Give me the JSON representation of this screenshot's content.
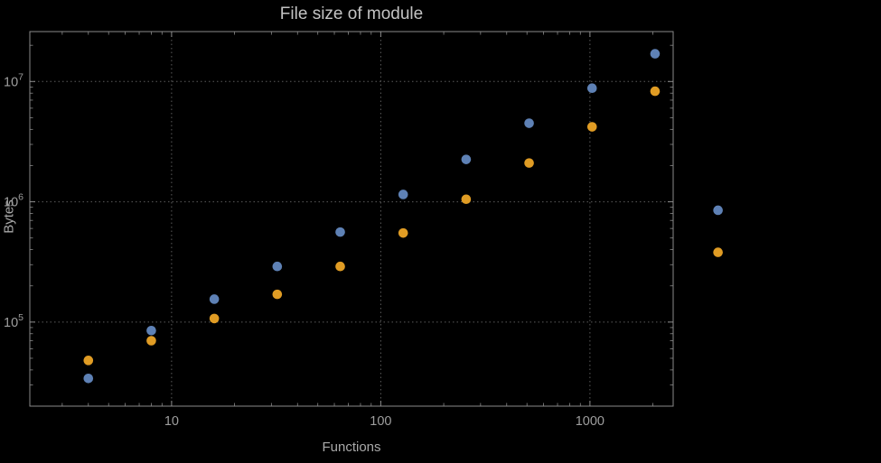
{
  "title": "File size of module",
  "chart_data": {
    "type": "scatter",
    "title": "File size of module",
    "xlabel": "Functions",
    "ylabel": "Bytes",
    "x_scale": "log",
    "y_scale": "log",
    "grid": "dotted-at-decades",
    "legend": "none",
    "x_range": [
      2.1,
      2500
    ],
    "y_range": [
      20000,
      26000000
    ],
    "x_ticks": [
      10,
      100,
      1000
    ],
    "x_tick_labels": [
      "10",
      "100",
      "1000"
    ],
    "y_ticks": [
      100000,
      1000000,
      10000000
    ],
    "y_tick_exponents": [
      5,
      6,
      7
    ],
    "x": [
      4,
      8,
      16,
      32,
      64,
      128,
      256,
      512,
      1024,
      2048,
      4096
    ],
    "series": [
      {
        "name": "blue",
        "color": "#5e81b5",
        "values": [
          34000,
          85000,
          155000,
          290000,
          560000,
          1150000,
          2250000,
          4500000,
          8800000,
          17000000,
          850000
        ]
      },
      {
        "name": "orange",
        "color": "#e09c24",
        "values": [
          48000,
          70000,
          107000,
          170000,
          290000,
          550000,
          1050000,
          2100000,
          4200000,
          8300000,
          380000
        ]
      }
    ]
  },
  "colors": {
    "background": "#000000",
    "frame": "#8a8a8a",
    "grid": "#5c5c5c",
    "title_text": "#c3c3c3",
    "axis_label_text": "#a9a9a9",
    "tick_label_text": "#9e9e9e"
  }
}
